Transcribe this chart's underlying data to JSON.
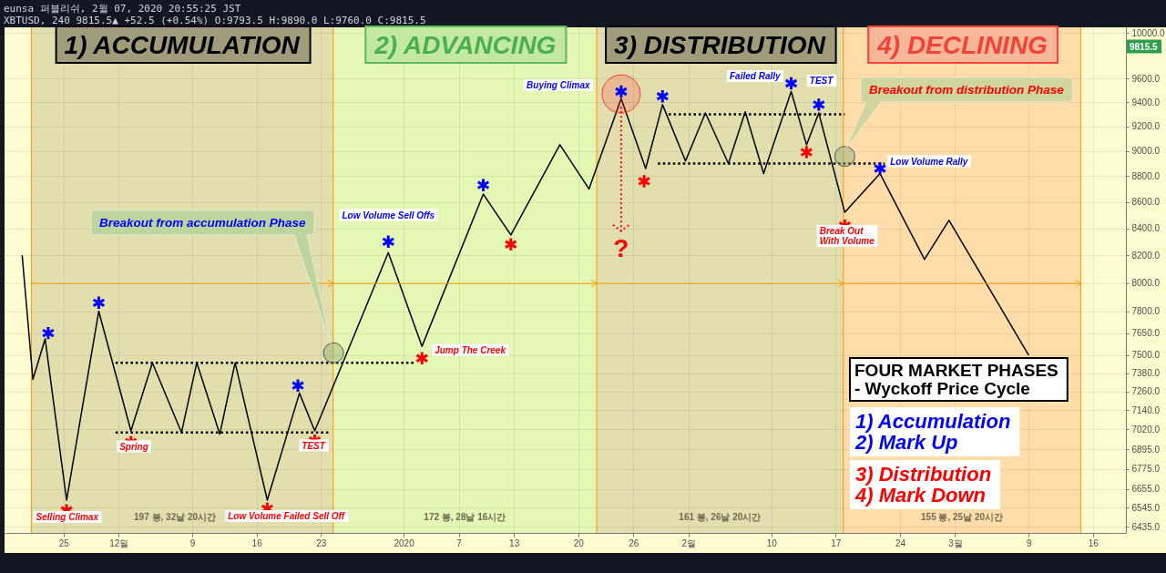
{
  "chart_data": {
    "type": "line",
    "title": "eunsa 퍼블리쉬, 2월 07, 2020 20:55:25 JST",
    "subtitle": "XBTUSD, 240 9815.5▲ +52.5 (+0.54%) O:9793.5 H:9890.0 L:9760.0 C:9815.5",
    "series": [
      {
        "color": "#000000",
        "x": [
          "2019-11-20T12:00",
          "2019-11-21T16:00",
          "2019-11-23T00:00",
          "2019-11-25T08:00",
          "2019-11-28T20:00",
          "2019-12-02T08:00",
          "2019-12-04T16:00",
          "2019-12-07T20:00",
          "2019-12-09T12:00",
          "2019-12-12T00:00",
          "2019-12-13T16:00",
          "2019-12-17T04:00",
          "2019-12-20T16:00",
          "2019-12-22T08:00",
          "2019-12-30T08:00",
          "2020-01-03T00:00",
          "2020-01-09T16:00",
          "2020-01-12T16:00",
          "2020-01-18T00:00",
          "2020-01-21T04:00",
          "2020-01-24T16:00",
          "2020-01-27T08:00",
          "2020-01-29T04:00",
          "2020-01-31T16:00",
          "2020-02-02T20:00",
          "2020-02-05T08:00",
          "2020-02-07T04:00",
          "2020-02-09T04:00",
          "2020-02-12T04:00",
          "2020-02-13T20:00",
          "2020-02-15T04:00",
          "2020-02-18T00:00",
          "2020-02-21T20:00",
          "2020-02-26T16:00",
          "2020-02-29T08:00",
          "2020-03-09T00:00"
        ],
        "values": [
          8200,
          7340,
          7610,
          6590,
          7800,
          7010,
          7450,
          7000,
          7450,
          6990,
          7450,
          6590,
          7250,
          7010,
          8220,
          7560,
          8660,
          8350,
          9050,
          8700,
          9430,
          8860,
          9380,
          8920,
          9310,
          8900,
          9320,
          8820,
          9490,
          9050,
          9310,
          8520,
          8820,
          8170,
          8460,
          7500
        ]
      },
      {
        "color": "#000000",
        "line_style": "dotted",
        "x": [
          "2019-11-30T16:00",
          "2020-01-02T08:00"
        ],
        "values": [
          7450,
          7450
        ]
      },
      {
        "color": "#000000",
        "line_style": "dotted",
        "x": [
          "2019-11-30T16:00",
          "2019-12-24T00:00"
        ],
        "values": [
          7000,
          7000
        ]
      },
      {
        "color": "#000000",
        "line_style": "dotted",
        "x": [
          "2020-01-29T20:00",
          "2020-02-18T00:00"
        ],
        "values": [
          9300,
          9300
        ]
      },
      {
        "color": "#000000",
        "line_style": "dotted",
        "x": [
          "2020-01-28T16:00",
          "2020-02-22T08:00"
        ],
        "values": [
          8900,
          8900
        ]
      },
      {
        "type": "bubble",
        "color": "#ff3b3b",
        "x": [
          "2020-01-24T16:00"
        ],
        "values": [
          9470
        ],
        "sizes": [
          1
        ]
      },
      {
        "type": "scatter",
        "color": "#0000ff",
        "marker": "cross",
        "x": [
          "2019-11-23T08:00",
          "2019-11-28T20:00",
          "2019-12-20T12:00",
          "2019-12-30T08:00",
          "2020-01-09T16:00",
          "2020-01-24T16:00",
          "2020-01-29T04:00",
          "2020-02-12T04:00",
          "2020-02-15T04:00",
          "2020-02-21T20:00"
        ],
        "values": [
          7650,
          7860,
          7300,
          8300,
          8730,
          9490,
          9450,
          9560,
          9380,
          8860
        ]
      },
      {
        "type": "scatter",
        "color": "#ff0000",
        "marker": "cross",
        "x": [
          "2019-11-25T08:00",
          "2019-12-02T08:00",
          "2019-12-17T04:00",
          "2019-12-22T08:00",
          "2020-01-03T00:00",
          "2020-01-12T16:00",
          "2020-01-27T04:00",
          "2020-02-13T20:00",
          "2020-02-18T00:00"
        ],
        "values": [
          6530,
          6940,
          6540,
          6950,
          7480,
          8280,
          8760,
          8990,
          8420
        ]
      }
    ],
    "xlim": [
      "2019-11-18T14:00",
      "2020-03-19T14:00"
    ],
    "xticks": [
      {
        "value": "2019-11-25",
        "label": "25"
      },
      {
        "value": "2019-12-01",
        "label": "12월"
      },
      {
        "value": "2019-12-09",
        "label": "9"
      },
      {
        "value": "2019-12-16",
        "label": "16"
      },
      {
        "value": "2019-12-23",
        "label": "23"
      },
      {
        "value": "2020-01-01",
        "label": "2020"
      },
      {
        "value": "2020-01-07",
        "label": "7"
      },
      {
        "value": "2020-01-13",
        "label": "13"
      },
      {
        "value": "2020-01-20",
        "label": "20"
      },
      {
        "value": "2020-01-26",
        "label": "26"
      },
      {
        "value": "2020-02-01",
        "label": "2월"
      },
      {
        "value": "2020-02-10",
        "label": "10"
      },
      {
        "value": "2020-02-17",
        "label": "17"
      },
      {
        "value": "2020-02-24",
        "label": "24"
      },
      {
        "value": "2020-03-01",
        "label": "3월"
      },
      {
        "value": "2020-03-09",
        "label": "9"
      },
      {
        "value": "2020-03-16",
        "label": "16"
      }
    ],
    "ylim": [
      6400,
      10050
    ],
    "yticks": [
      {
        "value": 10000,
        "label": "10000.0"
      },
      {
        "value": 9600,
        "label": "9600.0"
      },
      {
        "value": 9400,
        "label": "9400.0"
      },
      {
        "value": 9200,
        "label": "9200.0"
      },
      {
        "value": 9000,
        "label": "9000.0"
      },
      {
        "value": 8800,
        "label": "8800.0"
      },
      {
        "value": 8600,
        "label": "8600.0"
      },
      {
        "value": 8400,
        "label": "8400.0"
      },
      {
        "value": 8200,
        "label": "8200.0"
      },
      {
        "value": 8000,
        "label": "8000.0"
      },
      {
        "value": 7800,
        "label": "7800.0"
      },
      {
        "value": 7650,
        "label": "7650.0"
      },
      {
        "value": 7500,
        "label": "7500.0"
      },
      {
        "value": 7380,
        "label": "7380.0"
      },
      {
        "value": 7260,
        "label": "7260.0"
      },
      {
        "value": 7140,
        "label": "7140.0"
      },
      {
        "value": 7020,
        "label": "7020.0"
      },
      {
        "value": 6895,
        "label": "6895.0"
      },
      {
        "value": 6775,
        "label": "6775.0"
      },
      {
        "value": 6655,
        "label": "6655.0"
      },
      {
        "value": 6545,
        "label": "6545.0"
      },
      {
        "value": 6435,
        "label": "6435.0"
      }
    ],
    "log": true,
    "grid": true,
    "bands": [
      {
        "axis": "x",
        "from": "2019-11-21T12:00",
        "to": "2019-12-24T08:00",
        "label": "1) ACCUMULATION",
        "color": "#e3deae"
      },
      {
        "axis": "x",
        "from": "2019-12-24T08:00",
        "to": "2020-01-22T00:00",
        "label": "2) ADVANCING",
        "color": "#e4f7b4"
      },
      {
        "axis": "x",
        "from": "2020-01-22T00:00",
        "to": "2020-02-17T20:00",
        "label": "3) DISTRIBUTION",
        "color": "#e3deae"
      },
      {
        "axis": "x",
        "from": "2020-02-17T20:00",
        "to": "2020-03-14T16:00",
        "label": "4) DECLINING",
        "color": "#feddab"
      }
    ],
    "ref_lines": [
      {
        "axis": "x",
        "value": "2019-11-21T12:00",
        "color": "#ff9800"
      },
      {
        "axis": "x",
        "value": "2019-12-24T08:00",
        "color": "#ff9800"
      },
      {
        "axis": "x",
        "value": "2020-01-22T00:00",
        "color": "#ff9800"
      },
      {
        "axis": "x",
        "value": "2020-02-17T20:00",
        "color": "#ff9800"
      },
      {
        "axis": "x",
        "value": "2020-03-14T16:00",
        "color": "#ff9800"
      }
    ],
    "annotations": [
      "Selling Climax",
      "Spring",
      "Low Volume Failed Sell Off",
      "TEST",
      "Low Volume Sell Offs",
      "Jump The Creek",
      "Buying Climax",
      "Failed Rally",
      "TEST",
      "Low Volume Rally",
      "Break Out\nWith Volume",
      {
        "text": "?",
        "x": "2020-01-24T16:00",
        "y": 9430
      },
      "Breakout from accumulation Phase",
      "Breakout from distribution Phase",
      "197 봉, 32날 20시간",
      "172 봉, 28날 16시간",
      "161 봉, 26날 20시간",
      "155 봉, 25날 20시간",
      "FOUR MARKET PHASES\n- Wyckoff Price Cycle",
      "1) Accumulation\n2) Mark Up",
      "3) Distribution\n4) Mark Down",
      "9815.5"
    ]
  }
}
